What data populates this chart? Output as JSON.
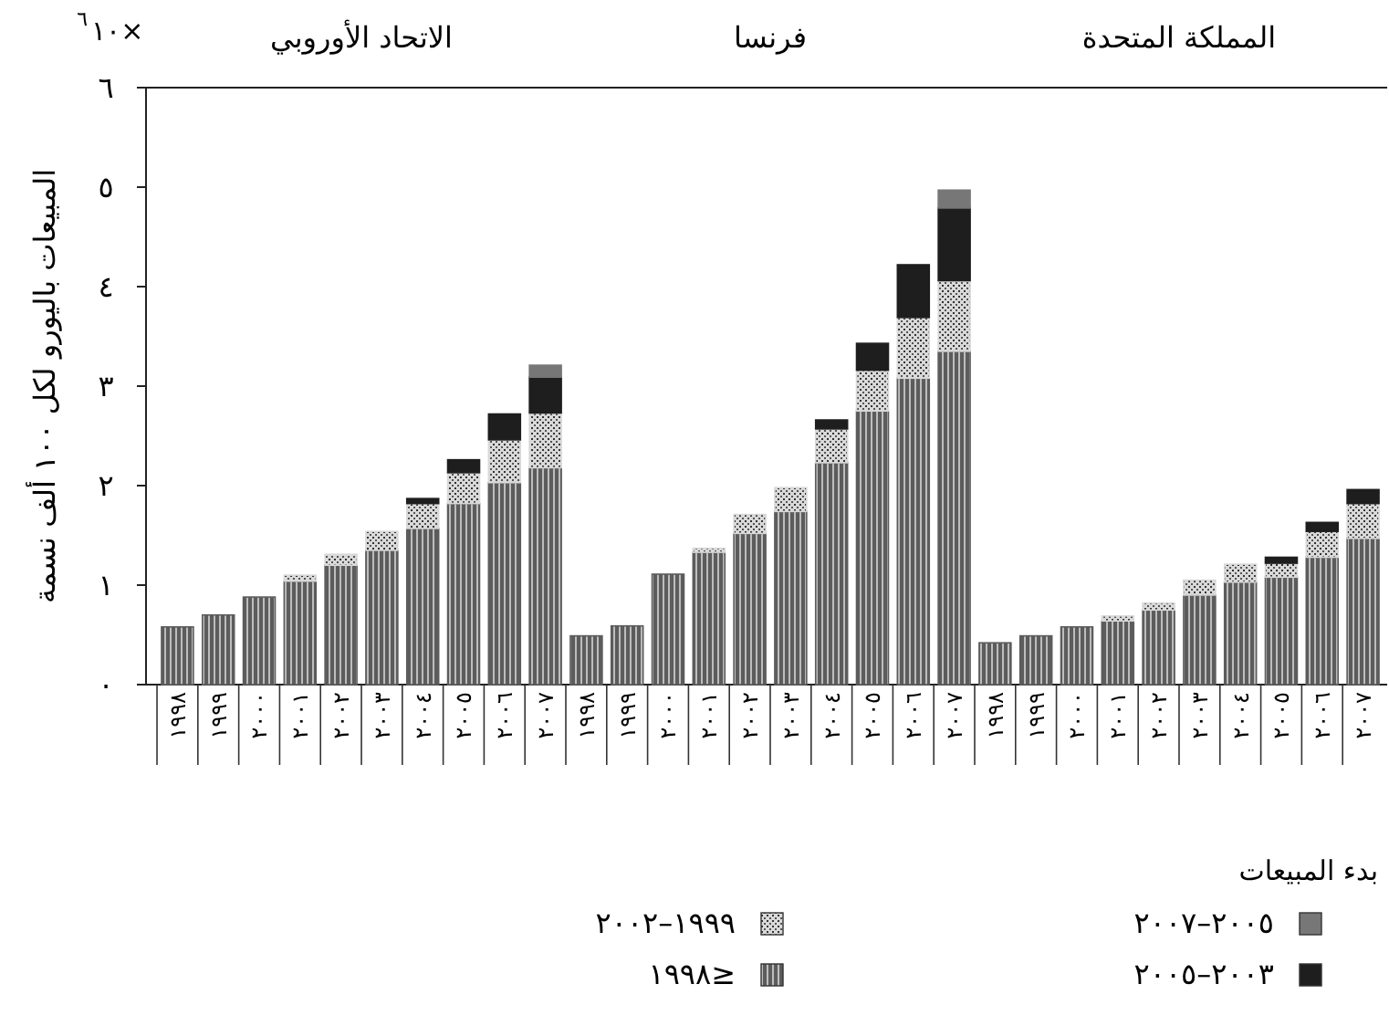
{
  "chart_data": {
    "type": "bar",
    "stacked": true,
    "categories": [
      "١٩٩٨",
      "١٩٩٩",
      "٢٠٠٠",
      "٢٠٠١",
      "٢٠٠٢",
      "٢٠٠٣",
      "٢٠٠٤",
      "٢٠٠٥",
      "٢٠٠٦",
      "٢٠٠٧",
      "١٩٩٨",
      "١٩٩٩",
      "٢٠٠٠",
      "٢٠٠١",
      "٢٠٠٢",
      "٢٠٠٣",
      "٢٠٠٤",
      "٢٠٠٥",
      "٢٠٠٦",
      "٢٠٠٧",
      "١٩٩٨",
      "١٩٩٩",
      "٢٠٠٠",
      "٢٠٠١",
      "٢٠٠٢",
      "٢٠٠٣",
      "٢٠٠٤",
      "٢٠٠٥",
      "٢٠٠٦",
      "٢٠٠٧"
    ],
    "ylabel": "المبيعات باليورو لكل ١٠٠ ألف نسمة",
    "legend_title": "بدء المبيعات",
    "annotations": [
      "الاتحاد الأوروبي",
      "فرنسا",
      "المملكة المتحدة",
      "×١٠$^{٦}$"
    ],
    "ylim": [
      0,
      6
    ],
    "yticks": [
      {
        "value": 0,
        "label": "٠"
      },
      {
        "value": 1,
        "label": "١"
      },
      {
        "value": 2,
        "label": "٢"
      },
      {
        "value": 3,
        "label": "٣"
      },
      {
        "value": 4,
        "label": "٤"
      },
      {
        "value": 5,
        "label": "٥"
      },
      {
        "value": 6,
        "label": "٦"
      }
    ],
    "legend": "bottom",
    "series": [
      {
        "name": "≤١٩٩٨",
        "color": "#5c5c5c",
        "values": [
          0.58,
          0.7,
          0.88,
          1.04,
          1.2,
          1.35,
          1.57,
          1.82,
          2.03,
          2.18,
          0.49,
          0.59,
          1.11,
          1.33,
          1.52,
          1.74,
          2.23,
          2.75,
          3.08,
          3.35,
          0.42,
          0.49,
          0.58,
          0.64,
          0.75,
          0.9,
          1.03,
          1.08,
          1.28,
          1.47
        ]
      },
      {
        "name": "١٩٩٩–٢٠٠٢",
        "color": "#d9d9d9",
        "values": [
          null,
          null,
          null,
          0.06,
          0.11,
          0.19,
          0.25,
          0.31,
          0.43,
          0.55,
          null,
          null,
          null,
          0.04,
          0.19,
          0.24,
          0.34,
          0.41,
          0.61,
          0.71,
          null,
          null,
          null,
          0.05,
          0.07,
          0.15,
          0.18,
          0.14,
          0.26,
          0.35
        ]
      },
      {
        "name": "٢٠٠٣–٢٠٠٥",
        "color": "#1e1e1e",
        "values": [
          null,
          null,
          null,
          null,
          null,
          null,
          0.05,
          0.13,
          0.26,
          0.36,
          null,
          null,
          null,
          null,
          null,
          null,
          0.09,
          0.27,
          0.53,
          0.73,
          null,
          null,
          null,
          null,
          null,
          null,
          null,
          0.06,
          0.09,
          0.14
        ]
      },
      {
        "name": "٢٠٠٥–٢٠٠٧",
        "color": "#777777",
        "values": [
          null,
          null,
          null,
          null,
          null,
          null,
          null,
          null,
          null,
          0.12,
          null,
          null,
          null,
          null,
          null,
          null,
          null,
          null,
          null,
          0.18,
          null,
          null,
          null,
          null,
          null,
          null,
          null,
          null,
          null,
          null
        ]
      }
    ]
  }
}
